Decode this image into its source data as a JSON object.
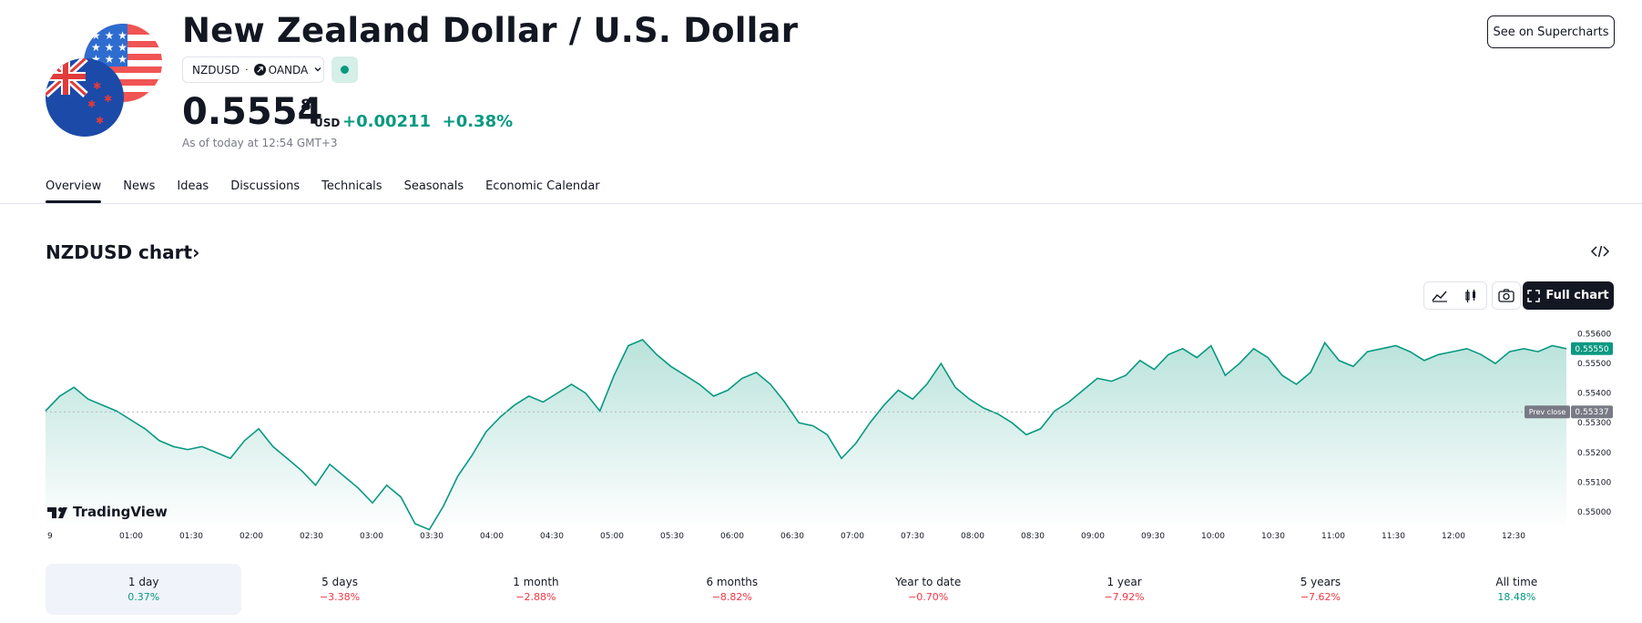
{
  "header": {
    "title": "New Zealand Dollar / U.S. Dollar",
    "symbol": "NZDUSD",
    "separator": "·",
    "broker": "OANDA",
    "price_main": "0.5554",
    "price_sup": "8",
    "currency": "USD",
    "change": "+0.00211",
    "change_pct": "+0.38%",
    "as_of": "As of today at 12:54 GMT+3",
    "supercharts_label": "See on Supercharts"
  },
  "tabs": [
    {
      "label": "Overview",
      "active": true
    },
    {
      "label": "News"
    },
    {
      "label": "Ideas"
    },
    {
      "label": "Discussions"
    },
    {
      "label": "Technicals"
    },
    {
      "label": "Seasonals"
    },
    {
      "label": "Economic Calendar"
    }
  ],
  "chart_section": {
    "title": "NZDUSD chart",
    "chevron": "›",
    "fullchart_label": "Full chart",
    "watermark": "TradingView"
  },
  "colors": {
    "accent_green": "#089981",
    "negative_red": "#f23645",
    "text": "#131722",
    "muted": "#787b86"
  },
  "chart_data": {
    "type": "area",
    "x_ticks": [
      "9",
      "01:00",
      "01:30",
      "02:00",
      "02:30",
      "03:00",
      "03:30",
      "04:00",
      "04:30",
      "05:00",
      "05:30",
      "06:00",
      "06:30",
      "07:00",
      "07:30",
      "08:00",
      "08:30",
      "09:00",
      "09:30",
      "10:00",
      "10:30",
      "11:00",
      "11:30",
      "12:00",
      "12:30"
    ],
    "y_ticks": [
      "0.55600",
      "0.55500",
      "0.55400",
      "0.55300",
      "0.55200",
      "0.55100",
      "0.55000"
    ],
    "ylim": [
      0.5496,
      0.5562
    ],
    "last_value": "0.55550",
    "prev_close_label": "Prev close",
    "prev_close_value": "0.55337",
    "grid": false,
    "series": [
      {
        "values": [
          0.5534,
          0.5539,
          0.5542,
          0.5538,
          0.5536,
          0.5534,
          0.5531,
          0.5528,
          0.5524,
          0.5522,
          0.5521,
          0.5522,
          0.552,
          0.5518,
          0.5524,
          0.5528,
          0.5522,
          0.5518,
          0.5514,
          0.5509,
          0.5516,
          0.5512,
          0.5508,
          0.5503,
          0.5509,
          0.5505,
          0.5496,
          0.5494,
          0.5502,
          0.5512,
          0.5519,
          0.5527,
          0.5532,
          0.5536,
          0.5539,
          0.5537,
          0.554,
          0.5543,
          0.554,
          0.5534,
          0.5546,
          0.5556,
          0.5558,
          0.5553,
          0.5549,
          0.5546,
          0.5543,
          0.5539,
          0.5541,
          0.5545,
          0.5547,
          0.5543,
          0.5537,
          0.553,
          0.5529,
          0.5526,
          0.5518,
          0.5523,
          0.553,
          0.5536,
          0.5541,
          0.5538,
          0.5543,
          0.555,
          0.5542,
          0.5538,
          0.5535,
          0.5533,
          0.553,
          0.5526,
          0.5528,
          0.5534,
          0.5537,
          0.5541,
          0.5545,
          0.5544,
          0.5546,
          0.5551,
          0.5548,
          0.5553,
          0.5555,
          0.5552,
          0.5556,
          0.5546,
          0.555,
          0.5555,
          0.5552,
          0.5546,
          0.5543,
          0.5547,
          0.5557,
          0.5551,
          0.5549,
          0.5554,
          0.5555,
          0.5556,
          0.5554,
          0.5551,
          0.5553,
          0.5554,
          0.5555,
          0.5553,
          0.555,
          0.5554,
          0.5555,
          0.5554,
          0.5556,
          0.5555
        ],
        "color": "#089981"
      }
    ]
  },
  "periods": [
    {
      "label": "1 day",
      "value": "0.37%",
      "positive": true,
      "active": true
    },
    {
      "label": "5 days",
      "value": "−3.38%",
      "positive": false
    },
    {
      "label": "1 month",
      "value": "−2.88%",
      "positive": false
    },
    {
      "label": "6 months",
      "value": "−8.82%",
      "positive": false
    },
    {
      "label": "Year to date",
      "value": "−0.70%",
      "positive": false
    },
    {
      "label": "1 year",
      "value": "−7.92%",
      "positive": false
    },
    {
      "label": "5 years",
      "value": "−7.62%",
      "positive": false
    },
    {
      "label": "All time",
      "value": "18.48%",
      "positive": true
    }
  ]
}
